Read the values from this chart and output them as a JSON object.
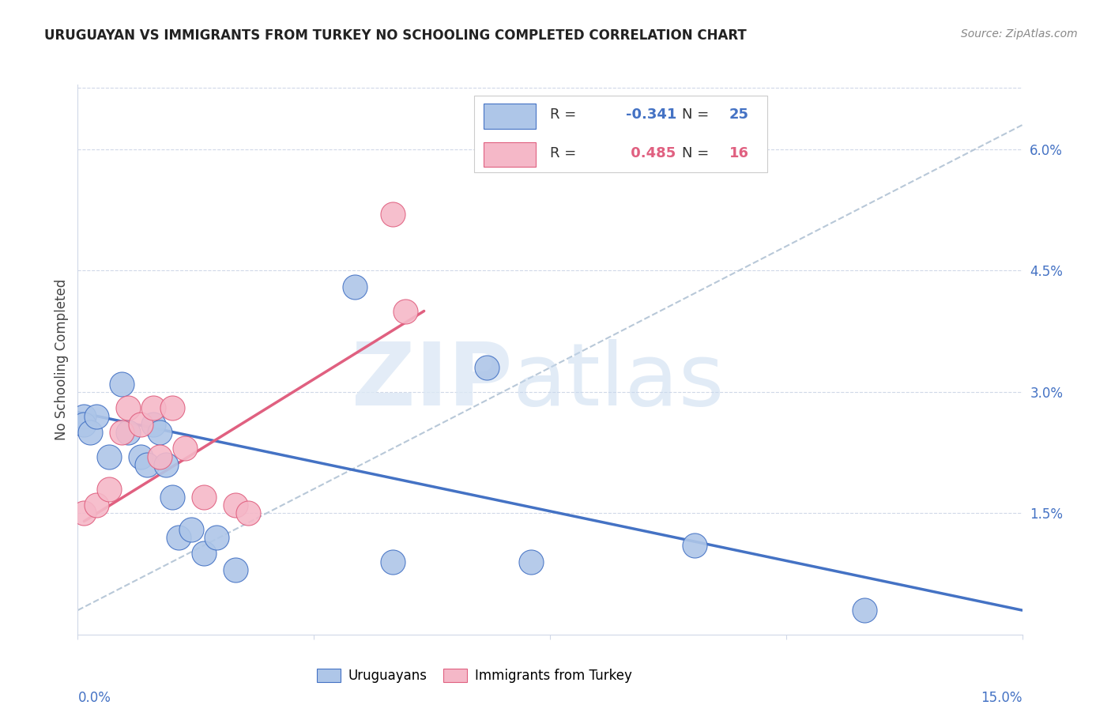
{
  "title": "URUGUAYAN VS IMMIGRANTS FROM TURKEY NO SCHOOLING COMPLETED CORRELATION CHART",
  "source": "Source: ZipAtlas.com",
  "ylabel": "No Schooling Completed",
  "right_yticks": [
    "6.0%",
    "4.5%",
    "3.0%",
    "1.5%"
  ],
  "right_ytick_vals": [
    0.06,
    0.045,
    0.03,
    0.015
  ],
  "xlim": [
    0.0,
    0.15
  ],
  "ylim": [
    0.0,
    0.068
  ],
  "blue_color": "#aec6e8",
  "pink_color": "#f5b8c8",
  "blue_line_color": "#4472c4",
  "pink_line_color": "#e06080",
  "dashed_line_color": "#b8c8d8",
  "uruguayan_x": [
    0.001,
    0.001,
    0.002,
    0.003,
    0.005,
    0.007,
    0.008,
    0.01,
    0.011,
    0.012,
    0.013,
    0.014,
    0.015,
    0.016,
    0.018,
    0.02,
    0.022,
    0.025,
    0.044,
    0.05,
    0.065,
    0.072,
    0.098,
    0.125
  ],
  "uruguayan_y": [
    0.027,
    0.026,
    0.025,
    0.027,
    0.022,
    0.031,
    0.025,
    0.022,
    0.021,
    0.026,
    0.025,
    0.021,
    0.017,
    0.012,
    0.013,
    0.01,
    0.012,
    0.008,
    0.043,
    0.009,
    0.033,
    0.009,
    0.011,
    0.003
  ],
  "turkey_x": [
    0.001,
    0.003,
    0.005,
    0.007,
    0.008,
    0.01,
    0.012,
    0.013,
    0.015,
    0.017,
    0.02,
    0.025,
    0.027,
    0.05,
    0.052
  ],
  "turkey_y": [
    0.015,
    0.016,
    0.018,
    0.025,
    0.028,
    0.026,
    0.028,
    0.022,
    0.028,
    0.023,
    0.017,
    0.016,
    0.015,
    0.052,
    0.04
  ],
  "blue_trend_x": [
    0.0,
    0.15
  ],
  "blue_trend_y": [
    0.0275,
    0.003
  ],
  "pink_trend_x": [
    0.001,
    0.055
  ],
  "pink_trend_y": [
    0.014,
    0.04
  ],
  "dashed_trend_x": [
    0.0,
    0.15
  ],
  "dashed_trend_y": [
    0.003,
    0.063
  ]
}
